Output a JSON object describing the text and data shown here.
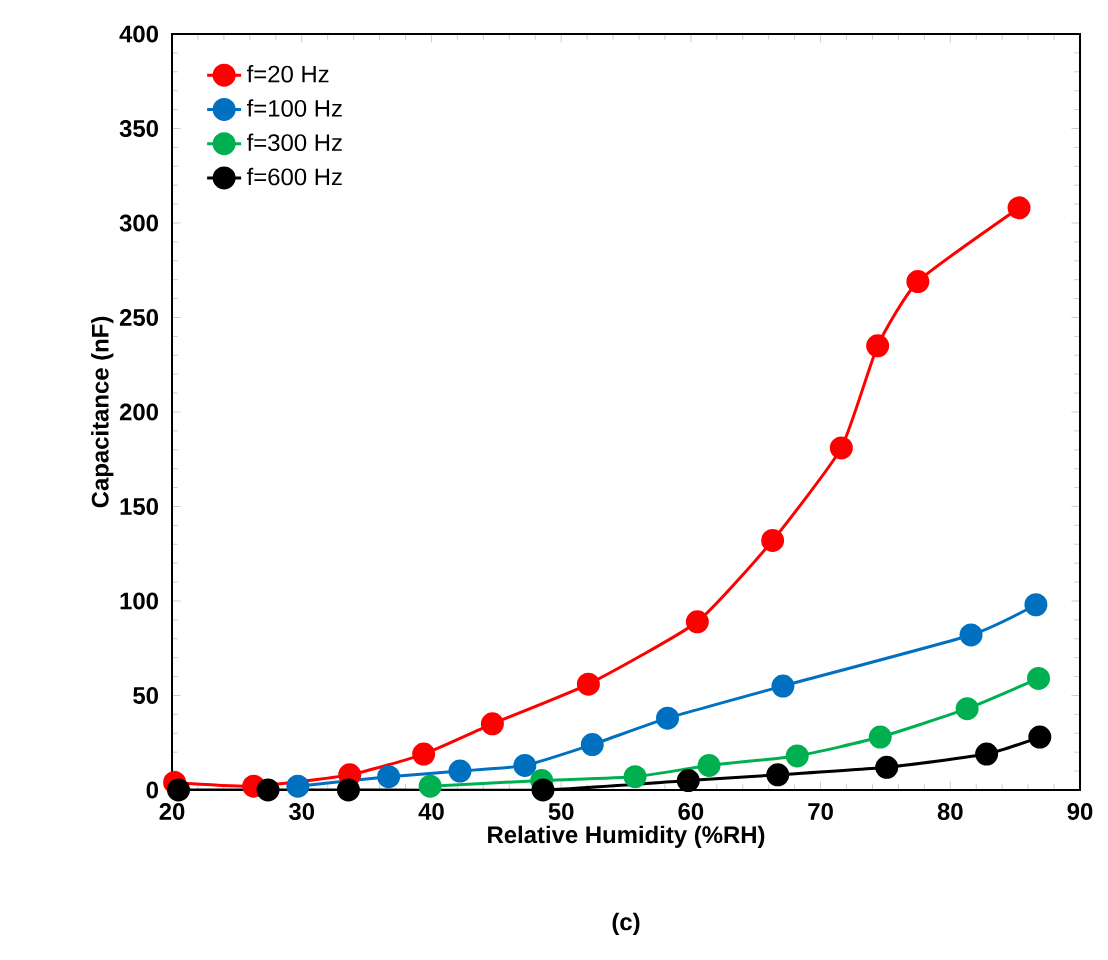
{
  "chart_data": {
    "type": "line",
    "xlabel": "Relative Humidity (%RH)",
    "ylabel": "Capacitance (nF)",
    "annotations": [
      "(c)"
    ],
    "xlim": [
      20,
      90
    ],
    "xticks": [
      20,
      30,
      40,
      50,
      60,
      70,
      80,
      90
    ],
    "ylim": [
      0,
      400
    ],
    "yticks": [
      0,
      50,
      100,
      150,
      200,
      250,
      300,
      350,
      400
    ],
    "legend": "top left",
    "marker": "circle",
    "line_style": "solid",
    "grid": false,
    "series": [
      {
        "name": "f=20 Hz",
        "color": "#ff0000",
        "x": [
          20.2,
          26.3,
          33.7,
          39.4,
          44.7,
          52.1,
          60.5,
          66.3,
          71.6,
          74.4,
          77.5,
          85.3
        ],
        "values": [
          4,
          2,
          8,
          19,
          35,
          56,
          89,
          132,
          181,
          235,
          269,
          308
        ]
      },
      {
        "name": "f=100 Hz",
        "color": "#0070c0",
        "x": [
          29.7,
          36.7,
          42.2,
          47.2,
          52.4,
          58.2,
          67.1,
          81.6,
          86.6
        ],
        "values": [
          2,
          7,
          10,
          13,
          24,
          38,
          55,
          82,
          98
        ]
      },
      {
        "name": "f=300 Hz",
        "color": "#00b050",
        "x": [
          39.9,
          48.5,
          55.7,
          61.4,
          68.2,
          74.6,
          81.3,
          86.8
        ],
        "values": [
          2,
          5,
          7,
          13,
          18,
          28,
          43,
          59
        ]
      },
      {
        "name": "f=600 Hz",
        "color": "#000000",
        "x": [
          20.5,
          27.4,
          33.6,
          48.6,
          59.8,
          66.7,
          75.1,
          82.8,
          86.9
        ],
        "values": [
          0,
          0,
          0,
          0,
          5,
          8,
          12,
          19,
          28
        ]
      }
    ]
  }
}
